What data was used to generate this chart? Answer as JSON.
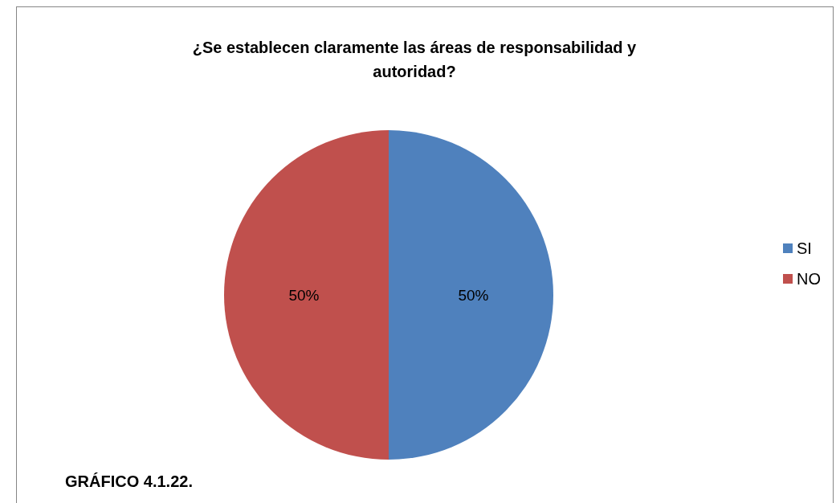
{
  "chart_data": {
    "type": "pie",
    "title": "¿Se establecen claramente las áreas de responsabilidad y\nautoridad?",
    "categories": [
      "SI",
      "NO"
    ],
    "values": [
      50,
      50
    ],
    "colors": [
      "#4f81bd",
      "#c0504d"
    ],
    "value_labels": [
      "50%",
      "50%"
    ],
    "legend": "right",
    "annotations": [
      "GRÁFICO 4.1.22."
    ]
  }
}
